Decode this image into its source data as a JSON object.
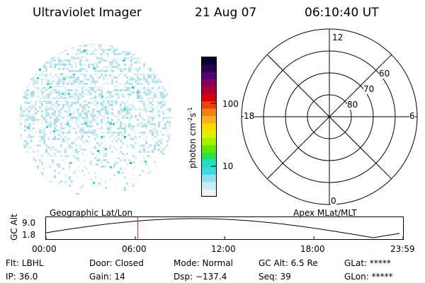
{
  "header": {
    "instrument": "Ultraviolet Imager",
    "date": "21 Aug 07",
    "time": "06:10:40 UT"
  },
  "colorbar": {
    "unit_label": "photon cm",
    "unit_sup1": "-2",
    "unit_mid": "s",
    "unit_sup2": "-1",
    "ticks": [
      "100",
      "10"
    ],
    "colors_top_to_bottom": [
      "#000030",
      "#2a0050",
      "#55006e",
      "#8a0060",
      "#b00030",
      "#d40010",
      "#f04010",
      "#f88010",
      "#f8b020",
      "#f8d800",
      "#e0f000",
      "#a8f000",
      "#60e800",
      "#20e060",
      "#20e0c0",
      "#40d8e8",
      "#90e0f0",
      "#c8ecf4",
      "#e8f4f8"
    ]
  },
  "polar_plot": {
    "mlt_labels": {
      "top": "12",
      "left": "18",
      "right": "6",
      "bottom": "0"
    },
    "lat_labels": [
      "60",
      "70",
      "80"
    ]
  },
  "timeline": {
    "y_axis_label": "GC Alt",
    "y_ticks": [
      "9.0",
      "1.8"
    ],
    "left_title": "Geographic Lat/Lon",
    "right_title": "Apex MLat/MLT",
    "x_ticks": [
      "00:00",
      "06:00",
      "12:00",
      "18:00",
      "23:59"
    ],
    "marker_time": "06:10",
    "curve_color": "#000000",
    "marker_color": "#d02020"
  },
  "status": {
    "filter": "Flt: LBHL",
    "ip": "IP: 36.0",
    "door": "Door: Closed",
    "gain": "Gain: 14",
    "mode": "Mode: Normal",
    "dsp": "Dsp: −137.4",
    "gc_alt": "GC Alt: 6.5 Re",
    "seq": "Seq: 39",
    "glat": "GLat: *****",
    "glon": "GLon: *****"
  }
}
